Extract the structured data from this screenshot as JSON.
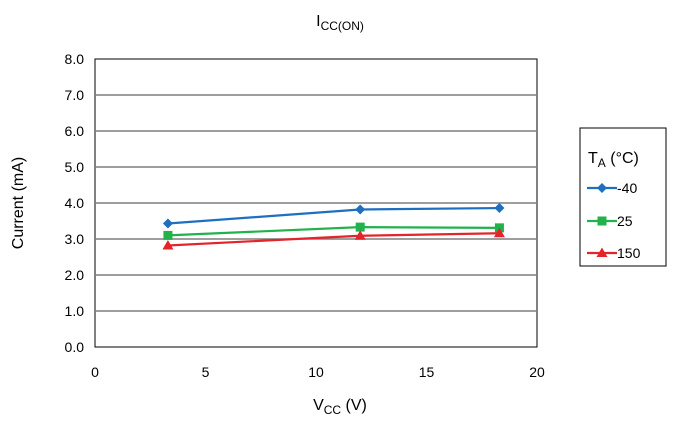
{
  "chart_data": {
    "type": "line",
    "title": {
      "main": "I",
      "sub": "CC(ON)"
    },
    "xlabel": {
      "main": "V",
      "sub": "CC",
      "suffix": " (V)"
    },
    "ylabel": "Current (mA)",
    "xlim": [
      0,
      20
    ],
    "ylim": [
      0,
      8
    ],
    "xticks": [
      0,
      5,
      10,
      15,
      20
    ],
    "yticks": [
      "0.0",
      "1.0",
      "2.0",
      "3.0",
      "4.0",
      "5.0",
      "6.0",
      "7.0",
      "8.0"
    ],
    "grid": "horizontal",
    "legend": {
      "placement": "right",
      "title": {
        "main": "T",
        "sub": "A",
        "suffix": " (°C)"
      }
    },
    "series": [
      {
        "name": "-40",
        "color": "#1f6fbf",
        "marker": "diamond",
        "x": [
          3.3,
          12,
          18.3
        ],
        "y": [
          3.43,
          3.82,
          3.86
        ]
      },
      {
        "name": "25",
        "color": "#22b24c",
        "marker": "square",
        "x": [
          3.3,
          12,
          18.3
        ],
        "y": [
          3.1,
          3.33,
          3.31
        ]
      },
      {
        "name": "150",
        "color": "#e3242b",
        "marker": "triangle",
        "x": [
          3.3,
          12,
          18.3
        ],
        "y": [
          2.82,
          3.09,
          3.16
        ]
      }
    ]
  }
}
